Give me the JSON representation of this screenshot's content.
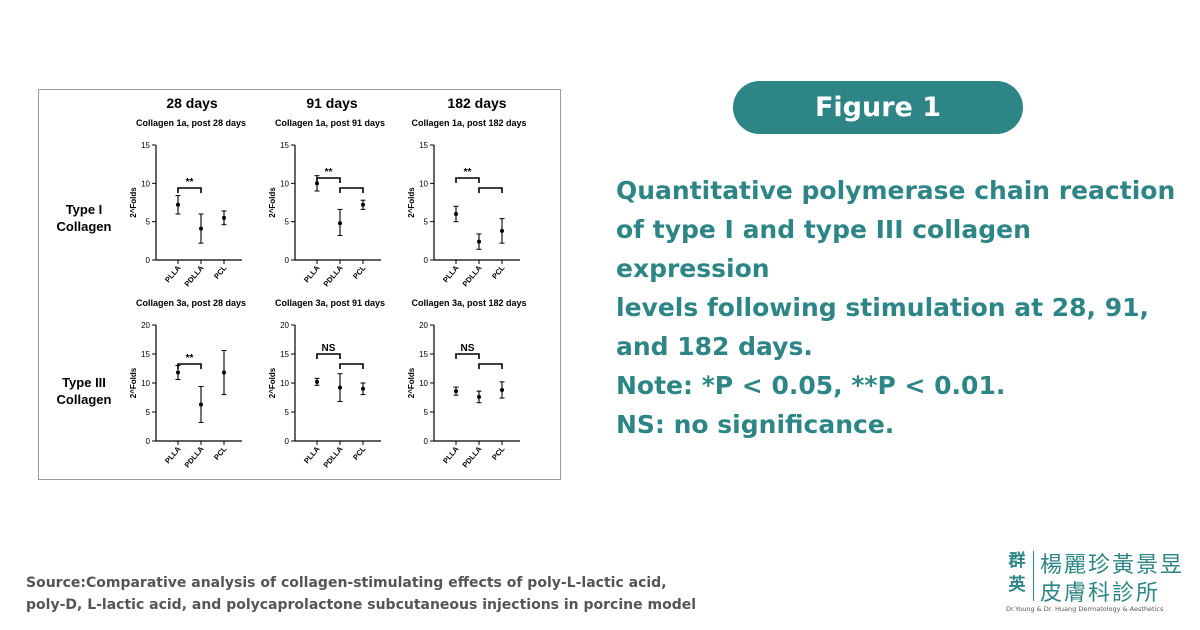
{
  "figure_label": "Figure 1",
  "description": [
    "Quantitative polymerase chain reaction",
    "of type I and type III collagen expression",
    "levels following stimulation at 28, 91,",
    "and 182 days."
  ],
  "note": [
    "Note: *P < 0.05, **P < 0.01.",
    "NS: no significance."
  ],
  "source": [
    "Source:Comparative analysis of collagen-stimulating effects of poly-L-lactic acid,",
    "poly-D, L-lactic acid, and polycaprolactone subcutaneous injections in porcine model"
  ],
  "logo": {
    "seal": [
      "群",
      "英"
    ],
    "name_line1": "楊麗珍黃景昱",
    "name_line2": "皮膚科診所",
    "english": "Dr.Young & Dr. Huang Dermatology & Aesthetics"
  },
  "colors": {
    "accent": "#2e8585",
    "source_text": "#555555"
  },
  "chart_data": {
    "type": "scatter",
    "columns": [
      "28 days",
      "91 days",
      "182 days"
    ],
    "rows": [
      {
        "label": [
          "Type I",
          "Collagen"
        ],
        "ylim": [
          0,
          15
        ],
        "ticks": [
          0,
          5,
          10,
          15
        ]
      },
      {
        "label": [
          "Type III",
          "Collagen"
        ],
        "ylim": [
          0,
          20
        ],
        "ticks": [
          0,
          5,
          10,
          15,
          20
        ]
      }
    ],
    "ylabel": "2^Folds",
    "categories": [
      "PLLA",
      "PDLLA",
      "PCL"
    ],
    "panels": [
      {
        "title": "Collagen 1a, post 28 days",
        "row": 0,
        "col": 0,
        "points": [
          {
            "y": 7.2,
            "low": 6.0,
            "high": 8.4
          },
          {
            "y": 4.1,
            "low": 2.2,
            "high": 6.0
          },
          {
            "y": 5.5,
            "low": 4.6,
            "high": 6.4
          }
        ],
        "brackets": [
          {
            "from": 0,
            "to": 1,
            "label": "**",
            "level": 0
          }
        ]
      },
      {
        "title": "Collagen 1a, post 91 days",
        "row": 0,
        "col": 1,
        "points": [
          {
            "y": 10.0,
            "low": 9.0,
            "high": 11.0
          },
          {
            "y": 4.8,
            "low": 3.2,
            "high": 6.6
          },
          {
            "y": 7.2,
            "low": 6.6,
            "high": 7.8
          }
        ],
        "brackets": [
          {
            "from": 0,
            "to": 1,
            "label": "**",
            "level": 1
          },
          {
            "from": 1,
            "to": 2,
            "label": "",
            "level": 0
          }
        ]
      },
      {
        "title": "Collagen 1a, post 182 days",
        "row": 0,
        "col": 2,
        "points": [
          {
            "y": 6.0,
            "low": 5.0,
            "high": 7.0
          },
          {
            "y": 2.4,
            "low": 1.4,
            "high": 3.4
          },
          {
            "y": 3.8,
            "low": 2.2,
            "high": 5.4
          }
        ],
        "brackets": [
          {
            "from": 0,
            "to": 1,
            "label": "**",
            "level": 1
          },
          {
            "from": 1,
            "to": 2,
            "label": "",
            "level": 0
          }
        ]
      },
      {
        "title": "Collagen 3a, post 28 days",
        "row": 1,
        "col": 0,
        "points": [
          {
            "y": 11.8,
            "low": 10.6,
            "high": 13.0
          },
          {
            "y": 6.3,
            "low": 3.2,
            "high": 9.4
          },
          {
            "y": 11.8,
            "low": 8.0,
            "high": 15.6
          }
        ],
        "brackets": [
          {
            "from": 0,
            "to": 1,
            "label": "**",
            "level": 0
          }
        ]
      },
      {
        "title": "Collagen 3a, post 91 days",
        "row": 1,
        "col": 1,
        "points": [
          {
            "y": 10.2,
            "low": 9.6,
            "high": 10.8
          },
          {
            "y": 9.2,
            "low": 6.8,
            "high": 11.6
          },
          {
            "y": 9.0,
            "low": 8.0,
            "high": 10.0
          }
        ],
        "brackets": [
          {
            "from": 0,
            "to": 1,
            "label": "NS",
            "level": 1
          },
          {
            "from": 1,
            "to": 2,
            "label": "",
            "level": 0
          }
        ]
      },
      {
        "title": "Collagen 3a, post 182 days",
        "row": 1,
        "col": 2,
        "points": [
          {
            "y": 8.6,
            "low": 7.9,
            "high": 9.3
          },
          {
            "y": 7.6,
            "low": 6.6,
            "high": 8.6
          },
          {
            "y": 8.8,
            "low": 7.4,
            "high": 10.2
          }
        ],
        "brackets": [
          {
            "from": 0,
            "to": 1,
            "label": "NS",
            "level": 1
          },
          {
            "from": 1,
            "to": 2,
            "label": "",
            "level": 0
          }
        ]
      }
    ]
  }
}
